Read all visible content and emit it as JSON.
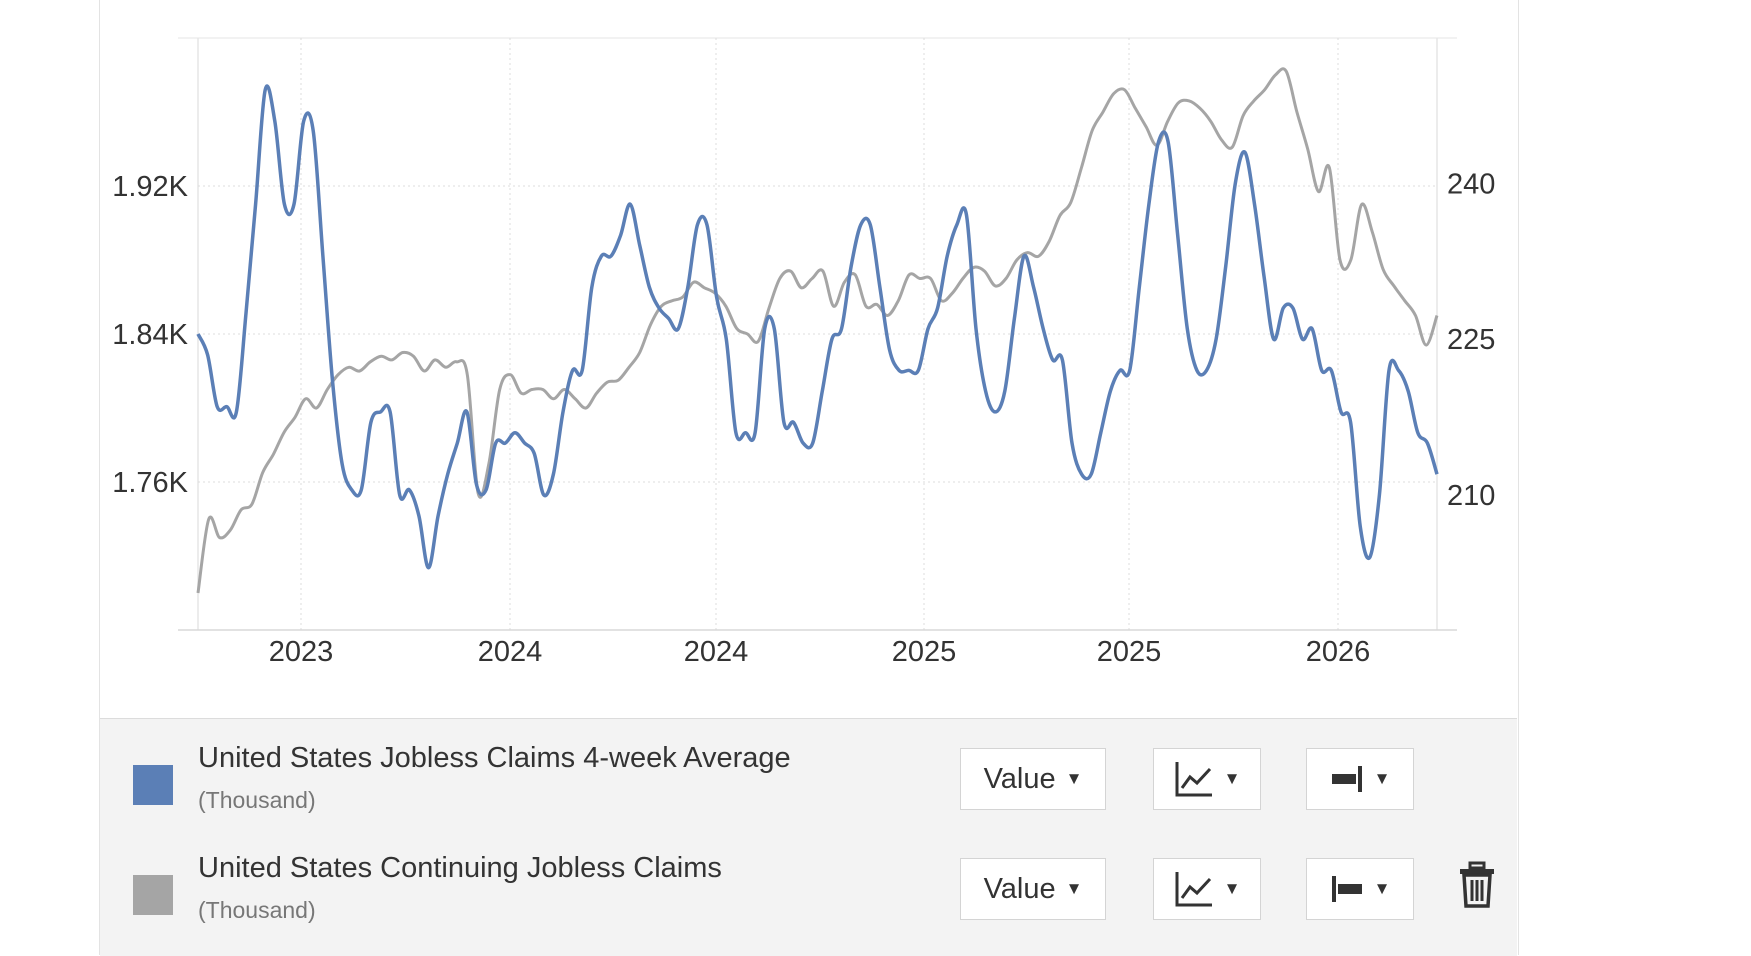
{
  "chart_data": {
    "type": "line",
    "x_tick_labels": [
      "2023",
      "2024",
      "2024",
      "2025",
      "2025",
      "2026"
    ],
    "left_axis": {
      "tick_labels": [
        "1.92K",
        "1.84K",
        "1.76K"
      ],
      "ticks": [
        1920,
        1840,
        1760
      ],
      "range": [
        1680,
        2000
      ]
    },
    "right_axis": {
      "tick_labels": [
        "240",
        "225",
        "210"
      ],
      "ticks": [
        240,
        225,
        210
      ],
      "range": [
        197,
        254
      ]
    },
    "grid": true,
    "series": [
      {
        "name": "United States Jobless Claims 4-week Average",
        "unit": "(Thousand)",
        "axis": "right",
        "color": "#5b7fb6",
        "values": [
          225.5,
          223.5,
          218.5,
          218.5,
          218,
          227.5,
          238,
          249,
          246,
          238,
          238,
          246,
          245,
          233,
          221,
          213,
          210.5,
          210.5,
          217,
          218,
          218,
          210,
          210.5,
          208,
          203,
          208,
          212,
          215,
          218,
          211,
          210.5,
          215,
          215,
          216,
          215,
          214,
          210,
          212,
          218,
          222,
          222,
          230,
          233,
          233,
          235,
          238,
          234,
          230,
          228,
          227,
          226,
          230,
          236,
          236,
          229,
          225,
          216,
          216,
          216,
          226,
          226,
          217,
          217,
          215,
          215,
          220,
          225,
          226,
          232,
          236,
          236,
          230,
          224,
          222,
          222,
          222,
          226,
          228,
          233,
          236,
          237,
          226,
          220,
          218,
          220,
          227,
          233,
          230,
          226,
          223,
          223,
          215,
          212,
          212,
          216,
          220,
          222,
          222,
          230,
          238,
          244,
          244,
          235,
          226,
          222,
          222,
          225,
          232,
          240,
          243,
          238,
          231,
          225,
          228,
          228,
          225,
          226,
          222,
          222,
          218,
          217,
          207,
          204,
          210,
          222,
          222,
          220,
          216,
          215,
          212
        ]
      },
      {
        "name": "United States Continuing Jobless Claims",
        "unit": "(Thousand)",
        "axis": "left",
        "color": "#a5a5a5",
        "values": [
          1700,
          1740,
          1730,
          1734,
          1745,
          1748,
          1765,
          1775,
          1787,
          1795,
          1805,
          1800,
          1810,
          1818,
          1822,
          1820,
          1825,
          1828,
          1826,
          1830,
          1828,
          1820,
          1826,
          1822,
          1825,
          1818,
          1754,
          1770,
          1810,
          1818,
          1808,
          1810,
          1810,
          1805,
          1810,
          1805,
          1800,
          1808,
          1814,
          1815,
          1822,
          1830,
          1845,
          1855,
          1858,
          1860,
          1868,
          1865,
          1862,
          1855,
          1843,
          1840,
          1836,
          1854,
          1870,
          1874,
          1865,
          1870,
          1874,
          1855,
          1868,
          1872,
          1855,
          1856,
          1850,
          1858,
          1872,
          1870,
          1870,
          1858,
          1862,
          1870,
          1876,
          1874,
          1866,
          1870,
          1880,
          1884,
          1882,
          1890,
          1904,
          1911,
          1930,
          1950,
          1960,
          1970,
          1972,
          1962,
          1952,
          1942,
          1955,
          1965,
          1966,
          1962,
          1955,
          1945,
          1941,
          1958,
          1966,
          1972,
          1980,
          1982,
          1960,
          1940,
          1917,
          1930,
          1880,
          1880,
          1910,
          1895,
          1875,
          1866,
          1858,
          1850,
          1834,
          1850
        ]
      }
    ]
  },
  "legend": {
    "series": [
      {
        "name": "United States Jobless Claims 4-week Average",
        "unit": "(Thousand)",
        "color": "#5b7fb6",
        "value_label": "Value",
        "icon_a": "line-chart-icon",
        "icon_b": "axis-right-icon"
      },
      {
        "name": "United States Continuing Jobless Claims",
        "unit": "(Thousand)",
        "color": "#a5a5a5",
        "value_label": "Value",
        "icon_a": "line-chart-icon",
        "icon_b": "axis-left-icon",
        "delete_icon": "trash-icon"
      }
    ]
  }
}
